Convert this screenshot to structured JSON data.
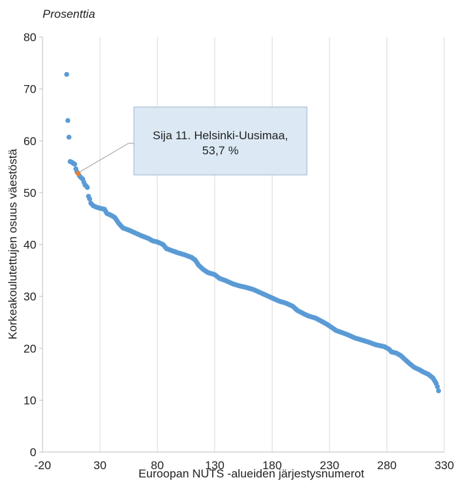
{
  "chart_data": {
    "type": "scatter",
    "unit_label": "Prosenttia",
    "xlabel": "Euroopan NUTS -alueiden järjestysnumerot",
    "ylabel": "Korkeakoulutettujen osuus väestöstä",
    "xlim": [
      -20,
      330
    ],
    "ylim": [
      0,
      80
    ],
    "x_ticks": [
      -20,
      30,
      80,
      130,
      180,
      230,
      280,
      330
    ],
    "y_ticks": [
      0,
      10,
      20,
      30,
      40,
      50,
      60,
      70,
      80
    ],
    "grid": {
      "vertical": true,
      "horizontal": false
    },
    "series_color": "#5b9bd5",
    "highlight_color": "#ed7d31",
    "callout_fill": "#dce9f5",
    "callout_border": "#9db4cc",
    "profile_points": [
      [
        1,
        72.8
      ],
      [
        2,
        63.9
      ],
      [
        3,
        60.7
      ],
      [
        4,
        56.0
      ],
      [
        5,
        55.9
      ],
      [
        6,
        55.8
      ],
      [
        7,
        55.6
      ],
      [
        8,
        55.5
      ],
      [
        9,
        54.6
      ],
      [
        10,
        54.0
      ],
      [
        12,
        53.3
      ],
      [
        13,
        53.0
      ],
      [
        14,
        52.8
      ],
      [
        15,
        52.6
      ],
      [
        16,
        52.0
      ],
      [
        17,
        51.5
      ],
      [
        18,
        51.3
      ],
      [
        19,
        51.0
      ],
      [
        20,
        49.3
      ],
      [
        21,
        48.8
      ],
      [
        22,
        48.0
      ],
      [
        24,
        47.5
      ],
      [
        27,
        47.2
      ],
      [
        30,
        47.0
      ],
      [
        34,
        46.8
      ],
      [
        36,
        46.0
      ],
      [
        40,
        45.6
      ],
      [
        43,
        45.2
      ],
      [
        46,
        44.2
      ],
      [
        50,
        43.2
      ],
      [
        55,
        42.8
      ],
      [
        60,
        42.3
      ],
      [
        66,
        41.7
      ],
      [
        72,
        41.2
      ],
      [
        76,
        40.7
      ],
      [
        80,
        40.5
      ],
      [
        85,
        40.0
      ],
      [
        88,
        39.2
      ],
      [
        93,
        38.8
      ],
      [
        98,
        38.4
      ],
      [
        104,
        38.0
      ],
      [
        110,
        37.5
      ],
      [
        113,
        37.0
      ],
      [
        116,
        36.0
      ],
      [
        120,
        35.2
      ],
      [
        124,
        34.6
      ],
      [
        130,
        34.2
      ],
      [
        134,
        33.5
      ],
      [
        140,
        33.0
      ],
      [
        146,
        32.4
      ],
      [
        152,
        32.0
      ],
      [
        158,
        31.7
      ],
      [
        164,
        31.3
      ],
      [
        170,
        30.7
      ],
      [
        176,
        30.1
      ],
      [
        180,
        29.7
      ],
      [
        186,
        29.1
      ],
      [
        192,
        28.7
      ],
      [
        198,
        28.1
      ],
      [
        202,
        27.3
      ],
      [
        208,
        26.6
      ],
      [
        212,
        26.2
      ],
      [
        218,
        25.8
      ],
      [
        224,
        25.1
      ],
      [
        228,
        24.6
      ],
      [
        232,
        24.0
      ],
      [
        236,
        23.4
      ],
      [
        240,
        23.1
      ],
      [
        246,
        22.6
      ],
      [
        252,
        22.0
      ],
      [
        258,
        21.6
      ],
      [
        264,
        21.2
      ],
      [
        270,
        20.7
      ],
      [
        278,
        20.3
      ],
      [
        282,
        19.8
      ],
      [
        284,
        19.3
      ],
      [
        288,
        19.1
      ],
      [
        292,
        18.6
      ],
      [
        296,
        17.8
      ],
      [
        300,
        17.0
      ],
      [
        304,
        16.3
      ],
      [
        308,
        15.9
      ],
      [
        312,
        15.4
      ],
      [
        316,
        15.0
      ],
      [
        320,
        14.3
      ],
      [
        322,
        13.6
      ],
      [
        323,
        13.2
      ],
      [
        324,
        12.6
      ],
      [
        325,
        11.8
      ]
    ],
    "total_regions": 325,
    "highlight_point": {
      "rank": 11,
      "value": 53.7
    },
    "annotation": {
      "line1": "Sija 11. Helsinki-Uusimaa,",
      "line2": "53,7 %"
    }
  }
}
